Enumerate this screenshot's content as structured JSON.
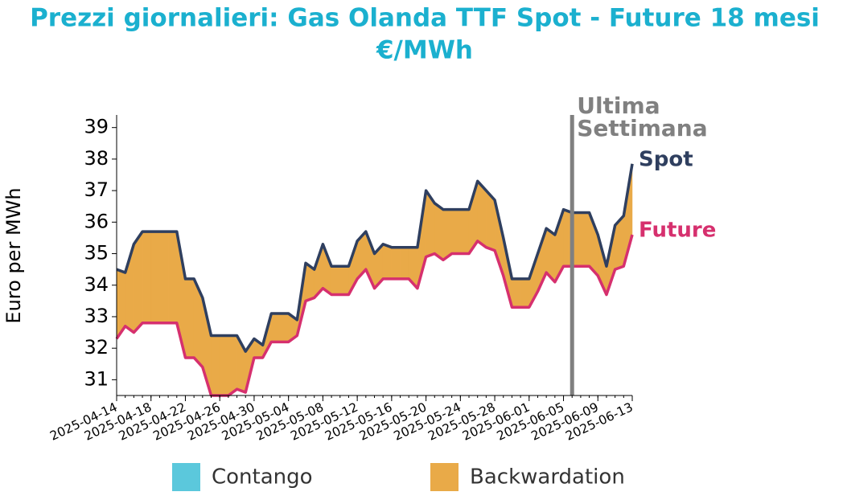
{
  "chart_data": {
    "type": "line",
    "title": [
      "Prezzi giornalieri: Gas Olanda TTF Spot - Future 18 mesi",
      "€/MWh"
    ],
    "y_label": "Euro per MWh",
    "x": [
      "2025-04-14",
      "2025-04-15",
      "2025-04-16",
      "2025-04-17",
      "2025-04-18",
      "2025-04-19",
      "2025-04-20",
      "2025-04-21",
      "2025-04-22",
      "2025-04-23",
      "2025-04-24",
      "2025-04-25",
      "2025-04-26",
      "2025-04-27",
      "2025-04-28",
      "2025-04-29",
      "2025-04-30",
      "2025-05-01",
      "2025-05-02",
      "2025-05-03",
      "2025-05-04",
      "2025-05-05",
      "2025-05-06",
      "2025-05-07",
      "2025-05-08",
      "2025-05-09",
      "2025-05-10",
      "2025-05-11",
      "2025-05-12",
      "2025-05-13",
      "2025-05-14",
      "2025-05-15",
      "2025-05-16",
      "2025-05-17",
      "2025-05-18",
      "2025-05-19",
      "2025-05-20",
      "2025-05-21",
      "2025-05-22",
      "2025-05-23",
      "2025-05-24",
      "2025-05-25",
      "2025-05-26",
      "2025-05-27",
      "2025-05-28",
      "2025-05-29",
      "2025-05-30",
      "2025-05-31",
      "2025-06-01",
      "2025-06-02",
      "2025-06-03",
      "2025-06-04",
      "2025-06-05",
      "2025-06-06",
      "2025-06-07",
      "2025-06-08",
      "2025-06-09",
      "2025-06-10",
      "2025-06-11",
      "2025-06-12",
      "2025-06-13"
    ],
    "series": [
      {
        "name": "Spot",
        "color": "#2f3f5f",
        "values": [
          34.5,
          34.4,
          35.3,
          35.7,
          35.7,
          35.7,
          35.7,
          35.7,
          34.2,
          34.2,
          33.6,
          32.4,
          32.4,
          32.4,
          32.4,
          31.9,
          32.3,
          32.1,
          33.1,
          33.1,
          33.1,
          32.9,
          34.7,
          34.5,
          35.3,
          34.6,
          34.6,
          34.6,
          35.4,
          35.7,
          35.0,
          35.3,
          35.2,
          35.2,
          35.2,
          35.2,
          37.0,
          36.6,
          36.4,
          36.4,
          36.4,
          36.4,
          37.3,
          37.0,
          36.7,
          35.5,
          34.2,
          34.2,
          34.2,
          35.0,
          35.8,
          35.6,
          36.4,
          36.3,
          36.3,
          36.3,
          35.6,
          34.6,
          35.9,
          36.2,
          37.85
        ]
      },
      {
        "name": "Future",
        "color": "#d6306e",
        "values": [
          32.3,
          32.7,
          32.5,
          32.8,
          32.8,
          32.8,
          32.8,
          32.8,
          31.7,
          31.7,
          31.4,
          30.5,
          30.5,
          30.5,
          30.7,
          30.6,
          31.7,
          31.7,
          32.2,
          32.2,
          32.2,
          32.4,
          33.5,
          33.6,
          33.9,
          33.7,
          33.7,
          33.7,
          34.2,
          34.5,
          33.9,
          34.2,
          34.2,
          34.2,
          34.2,
          33.9,
          34.9,
          35.0,
          34.8,
          35.0,
          35.0,
          35.0,
          35.4,
          35.2,
          35.1,
          34.3,
          33.3,
          33.3,
          33.3,
          33.8,
          34.4,
          34.1,
          34.6,
          34.6,
          34.6,
          34.6,
          34.3,
          33.7,
          34.5,
          34.6,
          35.6
        ]
      }
    ],
    "fill_legend": [
      {
        "name": "Contango",
        "color": "#5bc8dc"
      },
      {
        "name": "Backwardation",
        "color": "#e9aa48"
      }
    ],
    "ylim": [
      30.5,
      39.4
    ],
    "yticks": [
      31,
      32,
      33,
      34,
      35,
      36,
      37,
      38,
      39
    ],
    "xticks": [
      "2025-04-14",
      "2025-04-18",
      "2025-04-22",
      "2025-04-26",
      "2025-04-30",
      "2025-05-04",
      "2025-05-08",
      "2025-05-12",
      "2025-05-16",
      "2025-05-20",
      "2025-05-24",
      "2025-05-28",
      "2025-06-01",
      "2025-06-05",
      "2025-06-09",
      "2025-06-13"
    ],
    "annotation": {
      "x": "2025-06-06",
      "label": [
        "Ultima",
        "Settimana"
      ],
      "color": "#808080"
    }
  }
}
